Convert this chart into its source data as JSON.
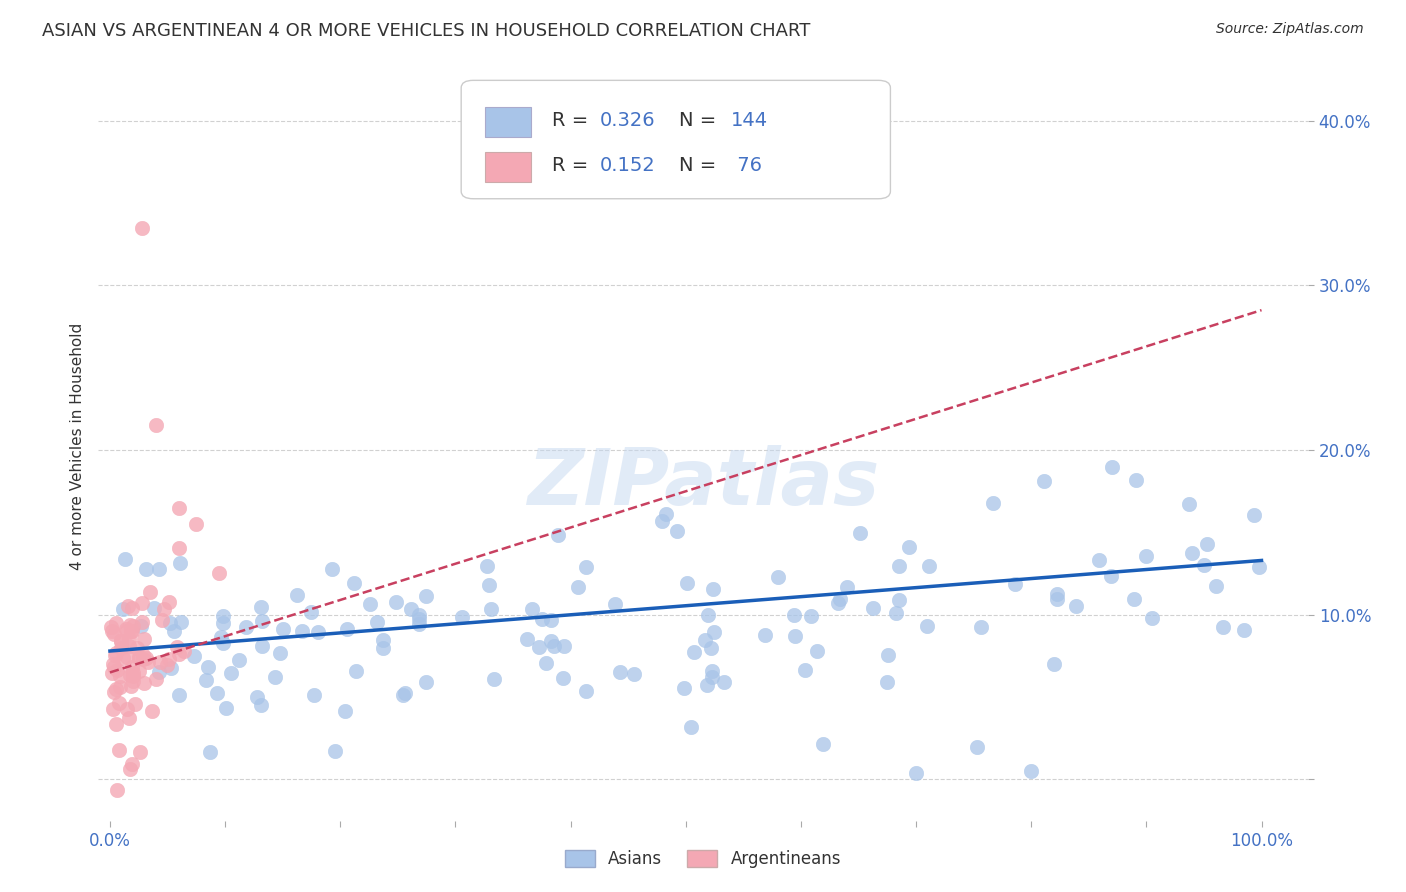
{
  "title": "ASIAN VS ARGENTINEAN 4 OR MORE VEHICLES IN HOUSEHOLD CORRELATION CHART",
  "source": "Source: ZipAtlas.com",
  "ylabel": "4 or more Vehicles in Household",
  "asian_R": 0.326,
  "asian_N": 144,
  "arg_R": 0.152,
  "arg_N": 76,
  "asian_color": "#a8c4e8",
  "arg_color": "#f4a8b4",
  "asian_line_color": "#1a5eb8",
  "arg_line_color": "#c84060",
  "watermark": "ZIPatlas",
  "title_fontsize": 13,
  "source_fontsize": 10,
  "legend_fontsize": 14,
  "axis_label_fontsize": 11,
  "tick_color": "#4472c4",
  "label_color": "#333333",
  "grid_color": "#cccccc",
  "ylim": [
    -0.025,
    0.43
  ],
  "xlim": [
    -0.01,
    1.04
  ],
  "y_tick_vals": [
    0.0,
    0.1,
    0.2,
    0.3,
    0.4
  ],
  "y_tick_labels": [
    "",
    "10.0%",
    "20.0%",
    "30.0%",
    "40.0%"
  ],
  "x_tick_vals": [
    0.0,
    0.1,
    0.2,
    0.3,
    0.4,
    0.5,
    0.6,
    0.7,
    0.8,
    0.9,
    1.0
  ],
  "x_tick_labels": [
    "0.0%",
    "",
    "",
    "",
    "",
    "",
    "",
    "",
    "",
    "",
    "100.0%"
  ]
}
